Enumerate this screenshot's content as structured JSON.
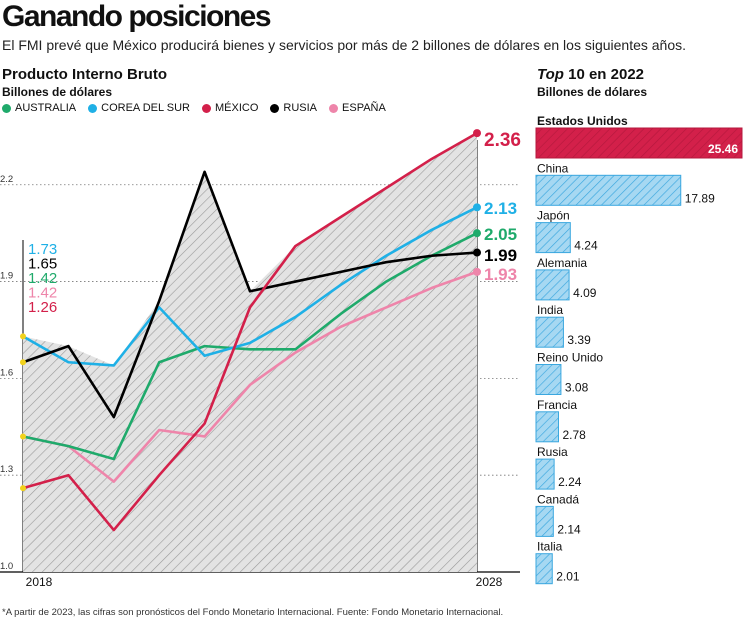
{
  "header": {
    "title": "Ganando posiciones",
    "subtitle": "El FMI prevé que México producirá bienes y servicios por más de 2 billones de dólares en los siguientes años."
  },
  "footnote": "*A partir de 2023, las cifras son pronósticos del Fondo Monetario Internacional. Fuente:  Fondo Monetario Internacional.",
  "chart_data": [
    {
      "type": "line",
      "title": "Producto Interno Bruto",
      "ylabel": "Billones de dólares",
      "x": [
        2018,
        2019,
        2020,
        2021,
        2022,
        2023,
        2024,
        2025,
        2026,
        2027,
        2028
      ],
      "x_tick_labels": [
        "2018",
        "2028"
      ],
      "y_ticks": [
        "1.0",
        "1.3",
        "1.6",
        "1.9",
        "2.2"
      ],
      "ylim": [
        1.0,
        2.36
      ],
      "grid": true,
      "shaded_series": "RUSIA",
      "series": [
        {
          "name": "AUSTRALIA",
          "color": "#1faa6b",
          "start_label": "1.42",
          "end_label": "2.05",
          "values": [
            1.42,
            1.39,
            1.35,
            1.65,
            1.7,
            1.69,
            1.69,
            1.8,
            1.9,
            1.98,
            2.05
          ]
        },
        {
          "name": "COREA DEL SUR",
          "color": "#1fb0e6",
          "start_label": "1.73",
          "end_label": "2.13",
          "values": [
            1.73,
            1.65,
            1.64,
            1.82,
            1.67,
            1.71,
            1.79,
            1.89,
            1.98,
            2.06,
            2.13
          ]
        },
        {
          "name": "MÉXICO",
          "color": "#d3204a",
          "start_label": "1.26",
          "end_label": "2.36",
          "values": [
            1.26,
            1.3,
            1.13,
            1.3,
            1.46,
            1.82,
            2.01,
            2.1,
            2.19,
            2.28,
            2.36
          ]
        },
        {
          "name": "RUSIA",
          "color": "#000000",
          "start_label": "1.65",
          "end_label": "1.99",
          "values": [
            1.65,
            1.7,
            1.48,
            1.84,
            2.24,
            1.87,
            1.9,
            1.93,
            1.96,
            1.98,
            1.99
          ]
        },
        {
          "name": "ESPAÑA",
          "color": "#ee85aa",
          "start_label": "1.42",
          "end_label": "1.93",
          "values": [
            1.42,
            1.39,
            1.28,
            1.44,
            1.42,
            1.58,
            1.68,
            1.76,
            1.82,
            1.88,
            1.93
          ]
        }
      ]
    },
    {
      "type": "bar",
      "orientation": "horizontal",
      "title_italic": "Top",
      "title_rest": " 10 en 2022",
      "ylabel": "Billones de dólares",
      "categories": [
        "Estados Unidos",
        "China",
        "Japón",
        "Alemania",
        "India",
        "Reino Unido",
        "Francia",
        "Rusia",
        "Canadá",
        "Italia"
      ],
      "values": [
        25.46,
        17.89,
        4.24,
        4.09,
        3.39,
        3.08,
        2.78,
        2.24,
        2.14,
        2.01
      ],
      "value_labels": [
        "25.46",
        "17.89",
        "4.24",
        "4.09",
        "3.39",
        "3.08",
        "2.78",
        "2.24",
        "2.14",
        "2.01"
      ],
      "highlight": "Estados Unidos",
      "highlight_color": "#d3204a",
      "bar_color": "#a6d8f2",
      "bar_stroke": "#3aa7df"
    }
  ]
}
